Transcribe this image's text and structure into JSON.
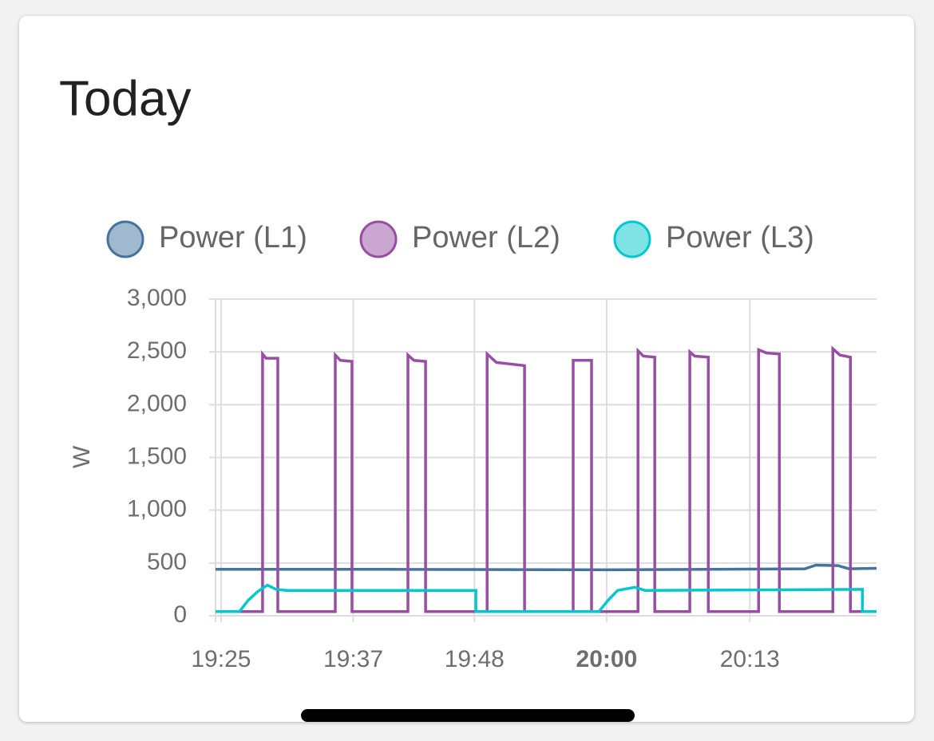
{
  "chart_data": {
    "type": "line",
    "title": "Today",
    "ylabel": "W",
    "xlim": [
      "19:24:30",
      "20:24:30"
    ],
    "xticks": [
      "19:25",
      "19:37",
      "19:48",
      "20:00",
      "20:13"
    ],
    "ylim": [
      0,
      3000
    ],
    "yticks": [
      {
        "value": 0,
        "label": "0"
      },
      {
        "value": 500,
        "label": "500"
      },
      {
        "value": 1000,
        "label": "1,000"
      },
      {
        "value": 1500,
        "label": "1,500"
      },
      {
        "value": 2000,
        "label": "2,000"
      },
      {
        "value": 2500,
        "label": "2,500"
      },
      {
        "value": 3000,
        "label": "3,000"
      }
    ],
    "grid": true,
    "series": [
      {
        "name": "Power (L1)",
        "color": "#44739e",
        "x": [
          "19:24:30",
          "19:40:00",
          "20:00:00",
          "20:18:00",
          "20:19:00",
          "20:21:00",
          "20:22:00",
          "20:24:30"
        ],
        "values": [
          440,
          440,
          435,
          445,
          480,
          475,
          445,
          450
        ]
      },
      {
        "name": "Power (L2)",
        "color": "#984ea3",
        "x": [
          "19:24:30",
          "19:28:46",
          "19:28:46",
          "19:29:05",
          "19:30:09",
          "19:30:09",
          "19:35:22",
          "19:35:22",
          "19:35:50",
          "19:36:53",
          "19:36:53",
          "19:41:58",
          "19:41:58",
          "19:42:30",
          "19:43:34",
          "19:43:34",
          "19:49:09",
          "19:49:09",
          "19:50:00",
          "19:52:33",
          "19:52:33",
          "19:56:58",
          "19:56:58",
          "19:58:38",
          "19:58:38",
          "20:02:51",
          "20:02:51",
          "20:03:20",
          "20:04:22",
          "20:04:22",
          "20:07:33",
          "20:07:33",
          "20:08:00",
          "20:09:14",
          "20:09:14",
          "20:13:48",
          "20:13:48",
          "20:14:30",
          "20:15:41",
          "20:15:41",
          "20:20:32",
          "20:20:32",
          "20:21:10",
          "20:22:08",
          "20:22:08",
          "20:24:30"
        ],
        "values": [
          40,
          40,
          2480,
          2440,
          2440,
          40,
          40,
          2470,
          2420,
          2410,
          40,
          40,
          2470,
          2420,
          2410,
          40,
          40,
          2480,
          2400,
          2370,
          40,
          40,
          2420,
          2420,
          40,
          40,
          2510,
          2460,
          2450,
          40,
          40,
          2500,
          2460,
          2450,
          40,
          40,
          2520,
          2490,
          2480,
          40,
          40,
          2530,
          2470,
          2450,
          40,
          40
        ]
      },
      {
        "name": "Power (L3)",
        "color": "#00c8cc",
        "x": [
          "19:24:30",
          "19:26:40",
          "19:27:30",
          "19:28:20",
          "19:29:12",
          "19:30:00",
          "19:31:00",
          "19:48:08",
          "19:48:08",
          "19:59:18",
          "20:00:10",
          "20:01:00",
          "20:02:33",
          "20:03:30",
          "20:23:13",
          "20:23:13",
          "20:24:30"
        ],
        "values": [
          40,
          40,
          150,
          230,
          290,
          250,
          240,
          240,
          40,
          40,
          150,
          240,
          270,
          240,
          250,
          40,
          40
        ]
      }
    ]
  }
}
